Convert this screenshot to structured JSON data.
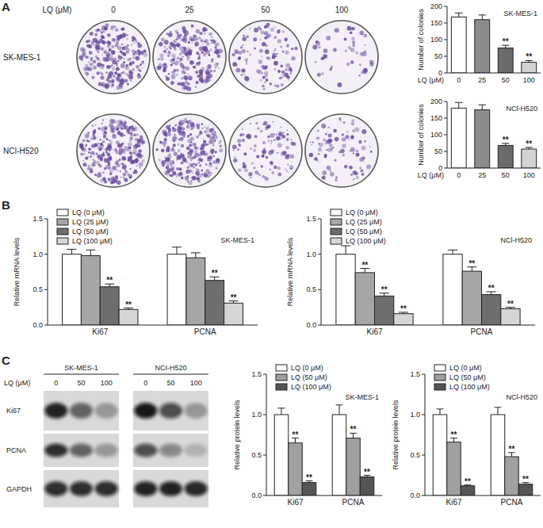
{
  "panel_labels": [
    "A",
    "B",
    "C"
  ],
  "colony_plates": {
    "dose_label": "LQ (μM)",
    "doses": [
      0,
      25,
      50,
      100
    ],
    "cell_lines": [
      "SK-MES-1",
      "NCI-H520"
    ]
  },
  "western_blot": {
    "cell_lines": [
      "SK-MES-1",
      "NCI-H520"
    ],
    "dose_label": "LQ (μM)",
    "doses": [
      0,
      50,
      100
    ],
    "proteins": [
      "Ki67",
      "PCNA",
      "GAPDH"
    ]
  },
  "chart_data": [
    {
      "type": "bar",
      "title": "SK-MES-1",
      "xlabel": "LQ (μM)",
      "ylabel": "Number of colonies",
      "categories": [
        "0",
        "25",
        "50",
        "100"
      ],
      "values": [
        168,
        160,
        75,
        32
      ],
      "errors": [
        12,
        14,
        8,
        5
      ],
      "significance": [
        null,
        null,
        "**",
        "**"
      ],
      "colors": [
        "#ffffff",
        "#8c8c8c",
        "#6b6b6b",
        "#d3d3d3"
      ],
      "ylim": [
        0,
        200
      ],
      "yticks": [
        0,
        50,
        100,
        150,
        200
      ],
      "grid": false
    },
    {
      "type": "bar",
      "title": "NCl-H520",
      "xlabel": "LQ (μM)",
      "ylabel": "Number of colonies",
      "categories": [
        "0",
        "25",
        "50",
        "100"
      ],
      "values": [
        180,
        175,
        68,
        57
      ],
      "errors": [
        17,
        15,
        6,
        5
      ],
      "significance": [
        null,
        null,
        "**",
        "**"
      ],
      "colors": [
        "#ffffff",
        "#8c8c8c",
        "#6b6b6b",
        "#d3d3d3"
      ],
      "ylim": [
        0,
        200
      ],
      "yticks": [
        0,
        50,
        100,
        150,
        200
      ],
      "grid": false
    },
    {
      "type": "bar",
      "title": "SK-MES-1",
      "ylabel": "Relative mRNA levels",
      "categories": [
        "Ki67",
        "PCNA"
      ],
      "legend": "top-left",
      "grid": false,
      "ylim": [
        0,
        1.5
      ],
      "yticks": [
        {
          "value": 0,
          "label": "0.0"
        },
        {
          "value": 0.5,
          "label": "0.5"
        },
        {
          "value": 1,
          "label": "1.0"
        },
        {
          "value": 1.5,
          "label": "1.5"
        }
      ],
      "series": [
        {
          "name": "LQ (0 μM)",
          "color": "#ffffff",
          "values": [
            1.0,
            1.0
          ],
          "errors": [
            0.07,
            0.1
          ],
          "significance": [
            null,
            null
          ]
        },
        {
          "name": "LQ (25 μM)",
          "color": "#a6a6a6",
          "values": [
            0.98,
            0.95
          ],
          "errors": [
            0.08,
            0.07
          ],
          "significance": [
            null,
            null
          ]
        },
        {
          "name": "LQ (50 μM)",
          "color": "#6e6e6e",
          "values": [
            0.54,
            0.63
          ],
          "errors": [
            0.04,
            0.05
          ],
          "significance": [
            "**",
            "**"
          ]
        },
        {
          "name": "LQ (100 μM)",
          "color": "#d6d6d6",
          "values": [
            0.22,
            0.31
          ],
          "errors": [
            0.02,
            0.03
          ],
          "significance": [
            "**",
            "**"
          ]
        }
      ]
    },
    {
      "type": "bar",
      "title": "NCl-H520",
      "ylabel": "Relative mRNA levels",
      "categories": [
        "Ki67",
        "PCNA"
      ],
      "legend": "top-left",
      "grid": false,
      "ylim": [
        0,
        1.5
      ],
      "yticks": [
        {
          "value": 0,
          "label": "0.0"
        },
        {
          "value": 0.5,
          "label": "0.5"
        },
        {
          "value": 1,
          "label": "1.0"
        },
        {
          "value": 1.5,
          "label": "1.5"
        }
      ],
      "series": [
        {
          "name": "LQ (0 μM)",
          "color": "#ffffff",
          "values": [
            1.0,
            1.0
          ],
          "errors": [
            0.12,
            0.06
          ],
          "significance": [
            null,
            null
          ]
        },
        {
          "name": "LQ (25 μM)",
          "color": "#a6a6a6",
          "values": [
            0.74,
            0.76
          ],
          "errors": [
            0.06,
            0.06
          ],
          "significance": [
            "**",
            "**"
          ]
        },
        {
          "name": "LQ (50 μM)",
          "color": "#6e6e6e",
          "values": [
            0.41,
            0.43
          ],
          "errors": [
            0.04,
            0.04
          ],
          "significance": [
            "**",
            "**"
          ]
        },
        {
          "name": "LQ (100 μM)",
          "color": "#d6d6d6",
          "values": [
            0.16,
            0.23
          ],
          "errors": [
            0.02,
            0.02
          ],
          "significance": [
            "**",
            "**"
          ]
        }
      ]
    },
    {
      "type": "bar",
      "title": "SK-MES-1",
      "ylabel": "Relative protein levels",
      "categories": [
        "Ki67",
        "PCNA"
      ],
      "legend": "top-left",
      "grid": false,
      "ylim": [
        0,
        1.5
      ],
      "yticks": [
        {
          "value": 0,
          "label": "0.0"
        },
        {
          "value": 0.5,
          "label": "0.5"
        },
        {
          "value": 1,
          "label": "1.0"
        },
        {
          "value": 1.5,
          "label": "1.5"
        }
      ],
      "series": [
        {
          "name": "LQ (0 μM)",
          "color": "#ffffff",
          "values": [
            1.0,
            1.0
          ],
          "errors": [
            0.08,
            0.12
          ],
          "significance": [
            null,
            null
          ]
        },
        {
          "name": "LQ (50 μM)",
          "color": "#a0a0a0",
          "values": [
            0.65,
            0.71
          ],
          "errors": [
            0.06,
            0.06
          ],
          "significance": [
            "**",
            "**"
          ]
        },
        {
          "name": "LQ (100 μM)",
          "color": "#555555",
          "values": [
            0.16,
            0.23
          ],
          "errors": [
            0.02,
            0.02
          ],
          "significance": [
            "**",
            "**"
          ]
        }
      ]
    },
    {
      "type": "bar",
      "title": "NCl-H520",
      "ylabel": "Relative protein levels",
      "categories": [
        "Ki67",
        "PCNA"
      ],
      "legend": "top-left",
      "grid": false,
      "ylim": [
        0,
        1.5
      ],
      "yticks": [
        {
          "value": 0,
          "label": "0.0"
        },
        {
          "value": 0.5,
          "label": "0.5"
        },
        {
          "value": 1,
          "label": "1.0"
        },
        {
          "value": 1.5,
          "label": "1.5"
        }
      ],
      "series": [
        {
          "name": "LQ (0 μM)",
          "color": "#ffffff",
          "values": [
            1.0,
            1.0
          ],
          "errors": [
            0.07,
            0.09
          ],
          "significance": [
            null,
            null
          ]
        },
        {
          "name": "LQ (50 μM)",
          "color": "#a0a0a0",
          "values": [
            0.66,
            0.48
          ],
          "errors": [
            0.05,
            0.05
          ],
          "significance": [
            "**",
            "**"
          ]
        },
        {
          "name": "LQ (100 μM)",
          "color": "#555555",
          "values": [
            0.12,
            0.14
          ],
          "errors": [
            0.01,
            0.02
          ],
          "significance": [
            "**",
            "**"
          ]
        }
      ]
    }
  ]
}
